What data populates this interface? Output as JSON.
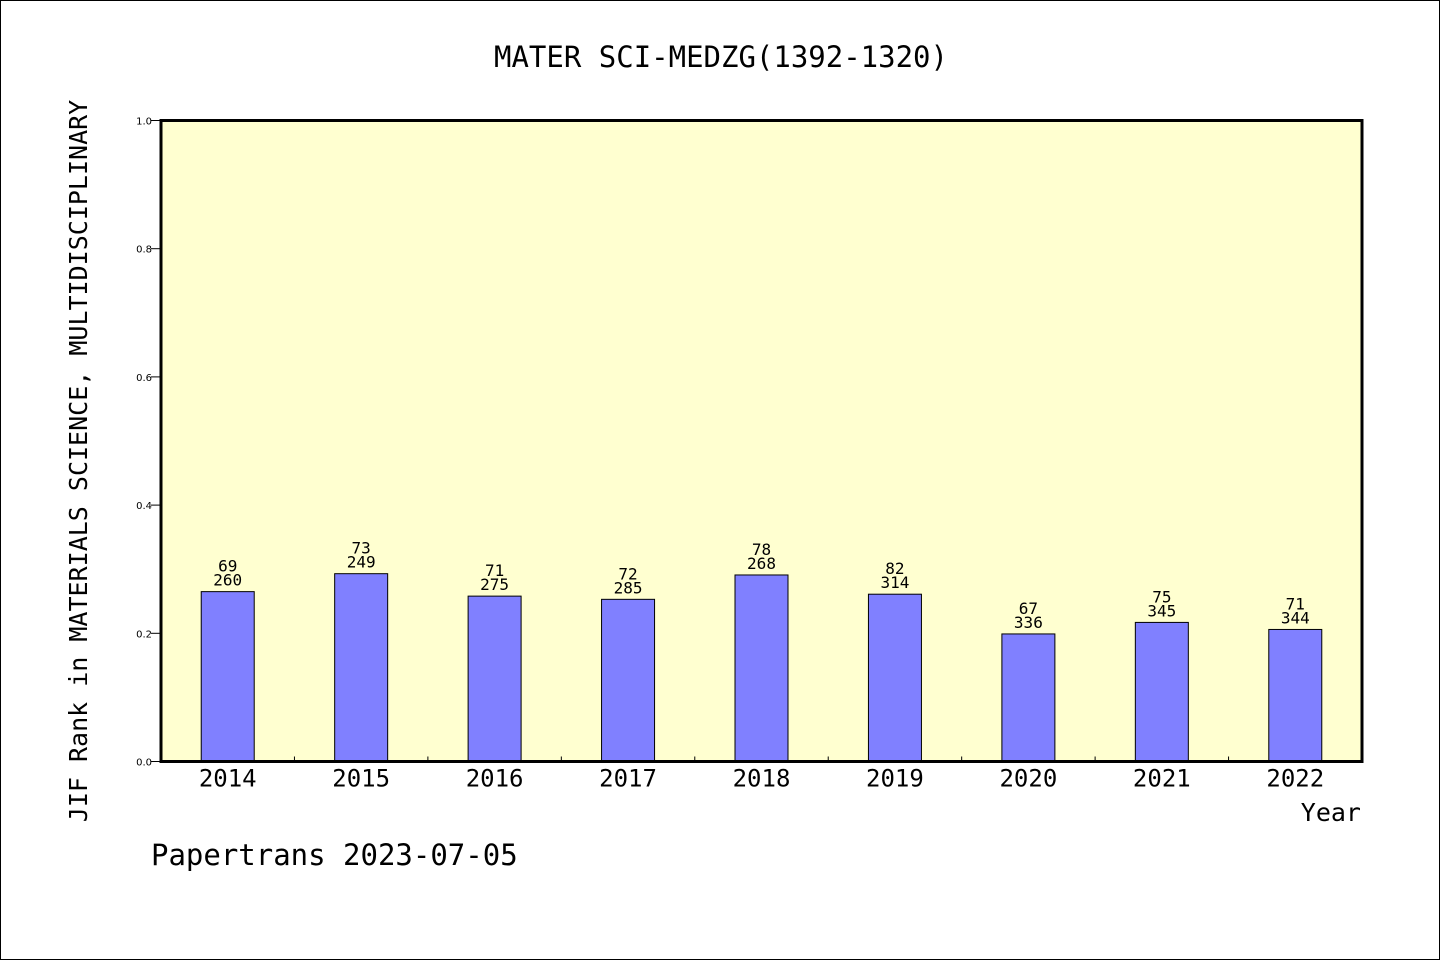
{
  "chart_data": {
    "type": "bar",
    "title": "MATER SCI-MEDZG(1392-1320)",
    "xlabel": "Year",
    "ylabel": "JIF Rank in MATERIALS SCIENCE, MULTIDISCIPLINARY",
    "categories": [
      "2014",
      "2015",
      "2016",
      "2017",
      "2018",
      "2019",
      "2020",
      "2021",
      "2022"
    ],
    "values": [
      0.265,
      0.293,
      0.258,
      0.253,
      0.291,
      0.261,
      0.199,
      0.217,
      0.206
    ],
    "rank": [
      "69",
      "73",
      "71",
      "72",
      "78",
      "82",
      "67",
      "75",
      "71"
    ],
    "total": [
      "260",
      "249",
      "275",
      "285",
      "268",
      "314",
      "336",
      "345",
      "344"
    ],
    "ylim": [
      0,
      1.0
    ],
    "yticks": [
      "0.0",
      "0.2",
      "0.4",
      "0.6",
      "0.8",
      "1.0"
    ],
    "ytick_values": [
      0.0,
      0.2,
      0.4,
      0.6,
      0.8,
      1.0
    ],
    "grid": false,
    "colors": {
      "bar": "#8080ff",
      "plot_background": "#ffffd0",
      "axis": "#000000"
    }
  },
  "footer": {
    "text": "Papertrans 2023-07-05"
  }
}
